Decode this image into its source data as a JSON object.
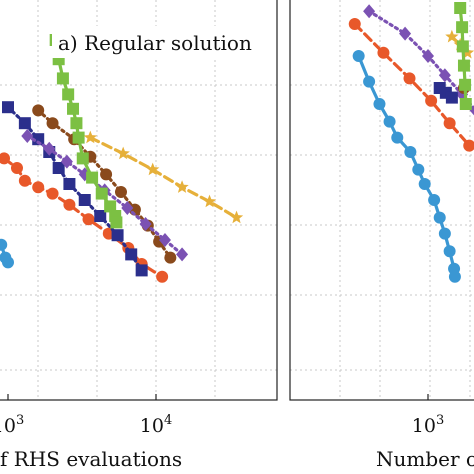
{
  "chart_data": [
    {
      "type": "line",
      "panel_label": "a) Regular solution",
      "x_scale": "log",
      "xlabel": "f RHS evaluations",
      "x_ticks": [
        {
          "value": 1000,
          "base": "10",
          "exp": "3"
        },
        {
          "value": 10000,
          "base": "10",
          "exp": "4"
        }
      ],
      "grid": true,
      "series": [
        {
          "marker": "circle",
          "color": "#3a97d3",
          "dash": "solid",
          "points": [
            [
              380,
              6.9
            ],
            [
              425,
              6.5
            ],
            [
              510,
              5.55
            ],
            [
              560,
              5.25
            ],
            [
              590,
              4.85
            ],
            [
              600,
              4.5
            ]
          ]
        },
        {
          "marker": "circle",
          "color": "#3a97d3",
          "dash": "solid",
          "points": [
            [
              900,
              4.6
            ],
            [
              960,
              4.2
            ],
            [
              1000,
              4.05
            ]
          ]
        },
        {
          "marker": "circle",
          "color": "#e8582a",
          "dash": "dashed",
          "points": [
            [
              940,
              7.3
            ],
            [
              1150,
              7.0
            ],
            [
              1300,
              6.6
            ],
            [
              1600,
              6.4
            ],
            [
              2000,
              6.2
            ],
            [
              2600,
              5.85
            ],
            [
              3500,
              5.4
            ],
            [
              4800,
              4.95
            ],
            [
              6500,
              4.5
            ],
            [
              8000,
              4.0
            ],
            [
              11000,
              3.6
            ]
          ]
        },
        {
          "marker": "square",
          "color": "#2b2f8c",
          "dash": "dotted",
          "points": [
            [
              1000,
              8.9
            ],
            [
              1300,
              8.4
            ],
            [
              1600,
              7.9
            ],
            [
              1900,
              7.5
            ],
            [
              2200,
              7.0
            ],
            [
              2600,
              6.5
            ],
            [
              3300,
              6.0
            ],
            [
              4200,
              5.5
            ],
            [
              5500,
              4.9
            ],
            [
              6800,
              4.3
            ],
            [
              8000,
              3.8
            ]
          ]
        },
        {
          "marker": "circle",
          "color": "#8a4a1c",
          "dash": "dotted",
          "points": [
            [
              1600,
              8.8
            ],
            [
              2000,
              8.4
            ],
            [
              2800,
              7.9
            ],
            [
              3600,
              7.35
            ],
            [
              4600,
              6.8
            ],
            [
              5800,
              6.25
            ],
            [
              7200,
              5.7
            ],
            [
              8800,
              5.2
            ],
            [
              10500,
              4.7
            ],
            [
              12500,
              4.2
            ]
          ]
        },
        {
          "marker": "diamond",
          "color": "#7b52b3",
          "dash": "dotted",
          "points": [
            [
              1350,
              8.0
            ],
            [
              1900,
              7.6
            ],
            [
              2500,
              7.2
            ],
            [
              3300,
              6.8
            ],
            [
              4500,
              6.3
            ],
            [
              6400,
              5.75
            ],
            [
              8500,
              5.25
            ],
            [
              11500,
              4.75
            ],
            [
              15000,
              4.3
            ]
          ]
        },
        {
          "marker": "star",
          "color": "#e6b03a",
          "dash": "dashed",
          "points": [
            [
              3600,
              7.95
            ],
            [
              6000,
              7.45
            ],
            [
              9500,
              6.95
            ],
            [
              15000,
              6.4
            ],
            [
              23000,
              5.95
            ],
            [
              35000,
              5.45
            ]
          ]
        },
        {
          "marker": "square",
          "color": "#7cc043",
          "dash": "solid",
          "points": [
            [
              2100,
              11.0
            ],
            [
              2200,
              10.4
            ],
            [
              2350,
              9.8
            ],
            [
              2550,
              9.3
            ],
            [
              2750,
              8.85
            ],
            [
              2900,
              8.4
            ],
            [
              3000,
              7.95
            ],
            [
              3200,
              7.3
            ],
            [
              3700,
              6.7
            ],
            [
              4300,
              6.2
            ],
            [
              4900,
              5.8
            ],
            [
              5300,
              5.5
            ],
            [
              5400,
              5.3
            ]
          ]
        }
      ]
    },
    {
      "type": "line",
      "xlabel": "Number o",
      "x_scale": "log",
      "x_ticks": [
        {
          "value": 1000,
          "base": "10",
          "exp": "3"
        }
      ],
      "grid": true,
      "series": [
        {
          "marker": "circle",
          "color": "#3a97d3",
          "dash": "solid",
          "points": [
            [
              340,
              10.5
            ],
            [
              400,
              9.7
            ],
            [
              470,
              9.0
            ],
            [
              550,
              8.45
            ],
            [
              620,
              7.95
            ],
            [
              760,
              7.5
            ],
            [
              860,
              6.95
            ],
            [
              950,
              6.5
            ],
            [
              1100,
              6.0
            ],
            [
              1200,
              5.45
            ],
            [
              1300,
              4.95
            ],
            [
              1400,
              4.4
            ],
            [
              1500,
              3.85
            ],
            [
              1520,
              3.6
            ]
          ]
        },
        {
          "marker": "circle",
          "color": "#e8582a",
          "dash": "dashed",
          "points": [
            [
              320,
              11.5
            ],
            [
              500,
              10.6
            ],
            [
              750,
              9.8
            ],
            [
              1050,
              9.1
            ],
            [
              1400,
              8.4
            ],
            [
              1900,
              7.7
            ]
          ]
        },
        {
          "marker": "diamond",
          "color": "#7b52b3",
          "dash": "dotted",
          "points": [
            [
              400,
              11.9
            ],
            [
              700,
              11.2
            ],
            [
              1000,
              10.5
            ],
            [
              1300,
              9.9
            ],
            [
              1700,
              9.3
            ],
            [
              2100,
              8.8
            ]
          ]
        },
        {
          "marker": "square",
          "color": "#2b2f8c",
          "dash": "dotted",
          "points": [
            [
              1200,
              9.5
            ],
            [
              1320,
              9.35
            ],
            [
              1450,
              9.2
            ]
          ]
        },
        {
          "marker": "star",
          "color": "#e6b03a",
          "dash": "dashed",
          "points": [
            [
              1450,
              11.1
            ],
            [
              1650,
              10.85
            ],
            [
              1850,
              10.6
            ]
          ]
        },
        {
          "marker": "circle",
          "color": "#8a4a1c",
          "dash": "dotted",
          "points": [
            [
              1750,
              9.5
            ]
          ]
        },
        {
          "marker": "square",
          "color": "#7cc043",
          "dash": "solid",
          "points": [
            [
              1650,
              12.0
            ],
            [
              1700,
              11.4
            ],
            [
              1720,
              10.8
            ],
            [
              1750,
              10.2
            ],
            [
              1780,
              9.6
            ],
            [
              1800,
              9.0
            ]
          ]
        }
      ]
    }
  ]
}
